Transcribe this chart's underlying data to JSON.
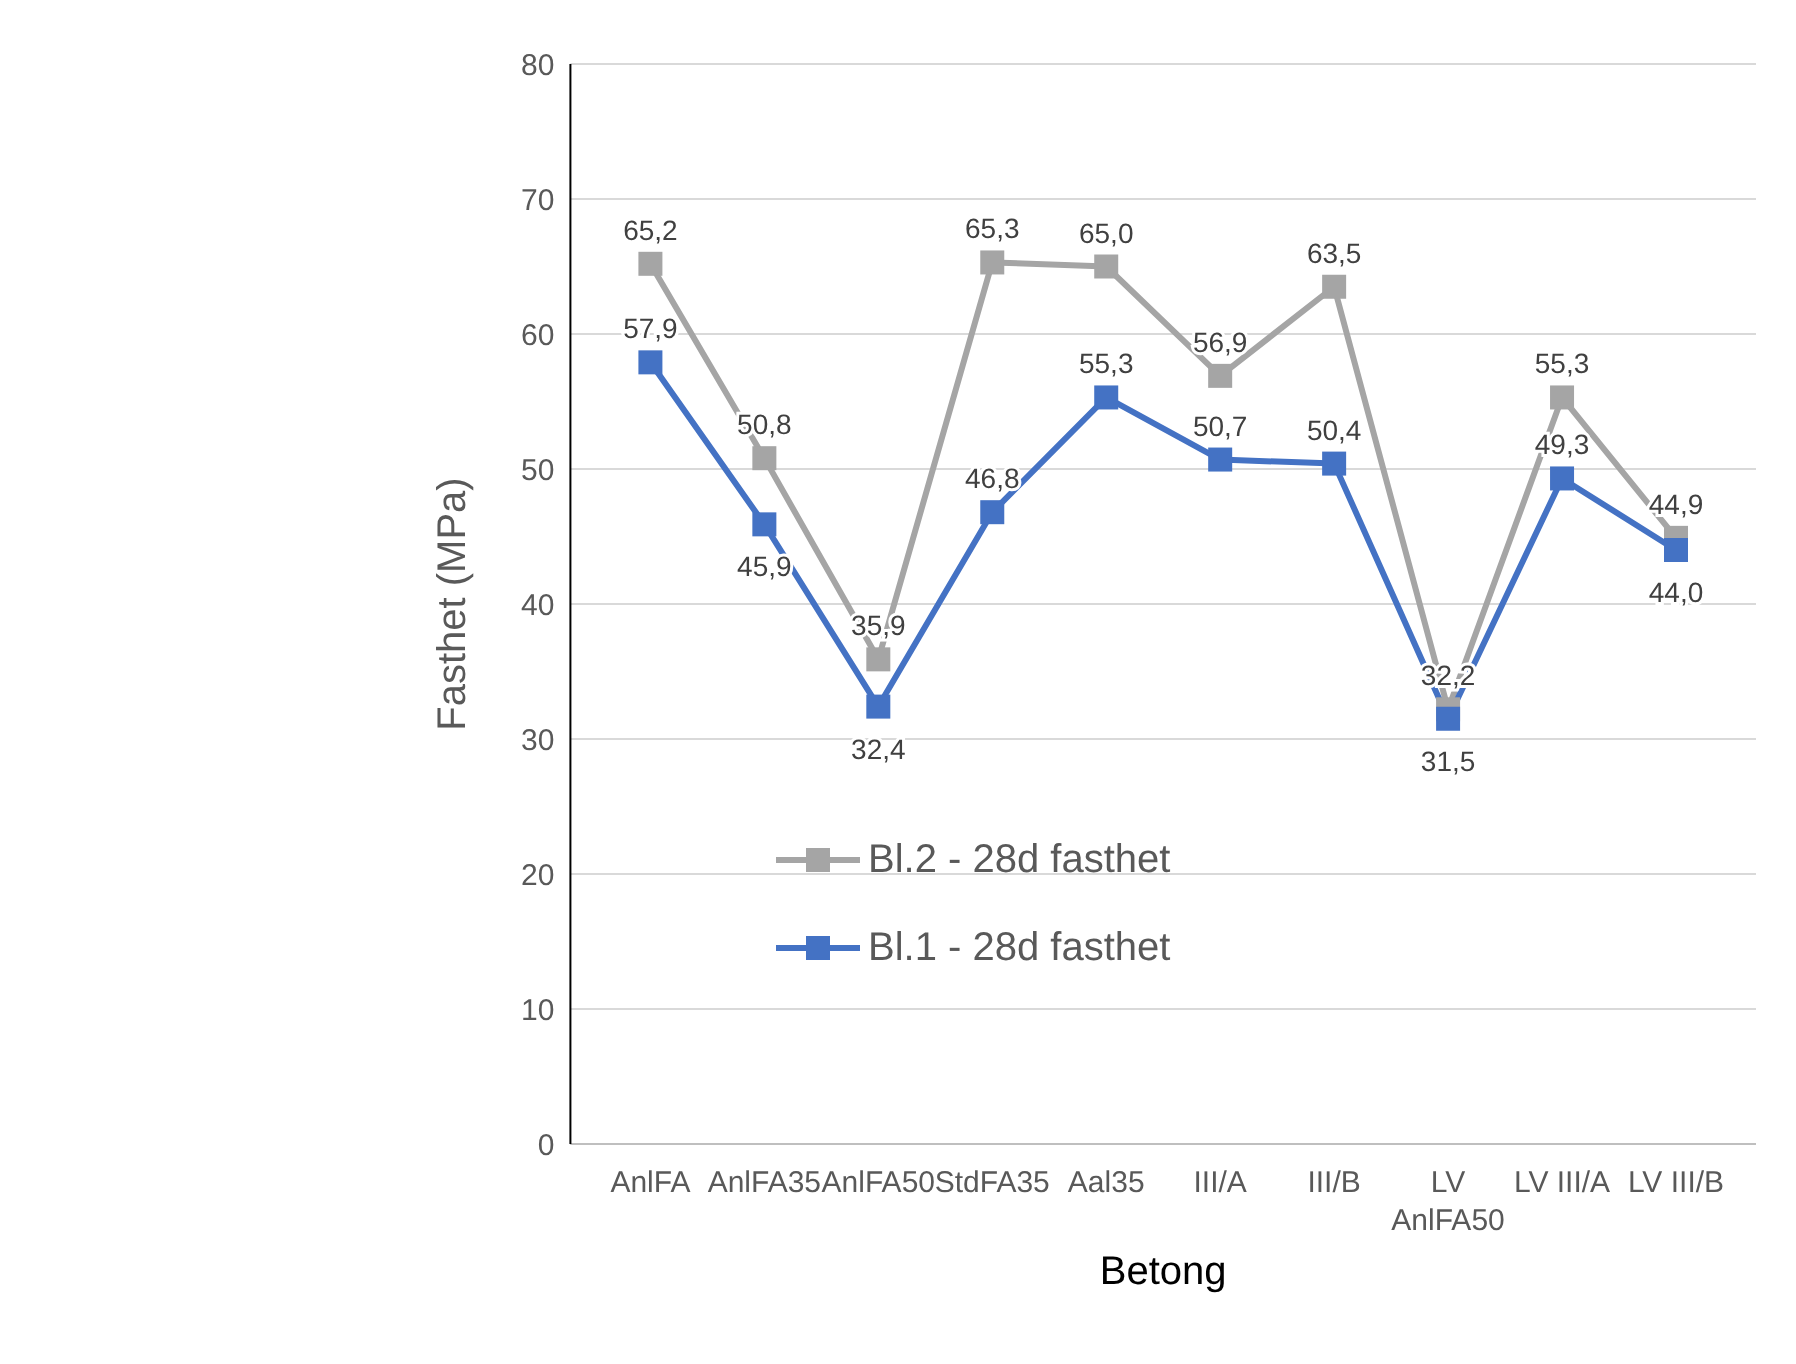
{
  "chart_data": {
    "type": "line",
    "xlabel": "Betong",
    "ylabel": "Fasthet (MPa)",
    "categories": [
      "AnlFA",
      "AnlFA35",
      "AnlFA50",
      "StdFA35",
      "Aal35",
      "III/A",
      "III/B",
      "LV AnlFA50",
      "LV III/A",
      "LV III/B"
    ],
    "series": [
      {
        "name": "Bl.2 - 28d fasthet",
        "color": "#a5a5a5",
        "values": [
          65.2,
          50.8,
          35.9,
          65.3,
          65.0,
          56.9,
          63.5,
          32.2,
          55.3,
          44.9
        ],
        "value_labels": [
          "65,2",
          "50,8",
          "35,9",
          "65,3",
          "65,0",
          "56,9",
          "63,5",
          "32,2",
          "55,3",
          "44,9"
        ]
      },
      {
        "name": "Bl.1 - 28d fasthet",
        "color": "#4472c4",
        "values": [
          57.9,
          45.9,
          32.4,
          46.8,
          55.3,
          50.7,
          50.4,
          31.5,
          49.3,
          44.0
        ],
        "value_labels": [
          "57,9",
          "45,9",
          "32,4",
          "46,8",
          "55,3",
          "50,7",
          "50,4",
          "31,5",
          "49,3",
          "44,0"
        ]
      }
    ],
    "ylim": [
      0,
      80
    ],
    "yticks": [
      0,
      10,
      20,
      30,
      40,
      50,
      60,
      70,
      80
    ],
    "grid": "y",
    "legend": "center",
    "marker": "square",
    "line_style": "solid"
  }
}
